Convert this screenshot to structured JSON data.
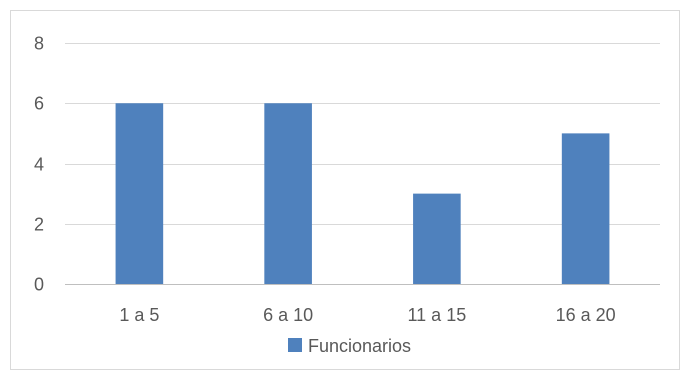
{
  "chart_data": {
    "type": "bar",
    "categories": [
      "1 a 5",
      "6 a 10",
      "11 a 15",
      "16 a 20"
    ],
    "series": [
      {
        "name": "Funcionarios",
        "values": [
          6,
          6,
          3,
          5
        ],
        "color": "#4f81bd"
      }
    ],
    "ylim": [
      0,
      8
    ],
    "yticks": [
      0,
      2,
      4,
      6,
      8
    ],
    "grid": true,
    "legend_position": "bottom",
    "colors": {
      "bar": "#4f81bd",
      "gridline": "#d9d9d9",
      "axis": "#bfbfbf",
      "text": "#595959",
      "border": "#d9d9d9"
    }
  }
}
